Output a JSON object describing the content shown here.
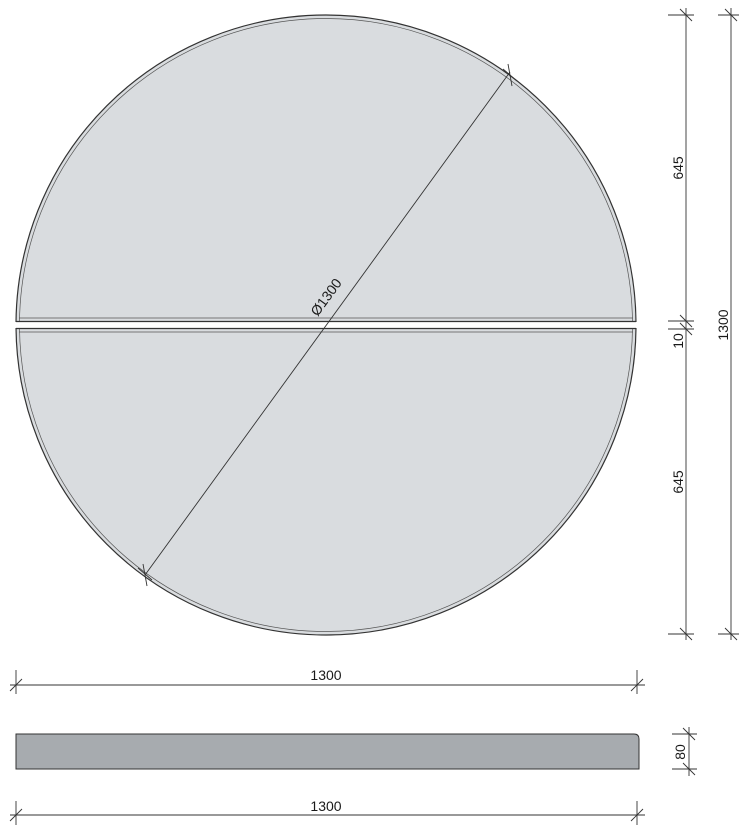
{
  "drawing": {
    "colors": {
      "top_fill": "#d9dcdf",
      "side_fill": "#a7abaf",
      "outline": "#333333",
      "background": "#ffffff"
    },
    "dimensions": {
      "diameter_label": "Ø1300",
      "upper_half_label": "645",
      "gap_label": "10",
      "lower_half_label": "645",
      "overall_height_label": "1300",
      "plan_width_label": "1300",
      "side_thickness_label": "80",
      "side_width_label": "1300"
    }
  }
}
